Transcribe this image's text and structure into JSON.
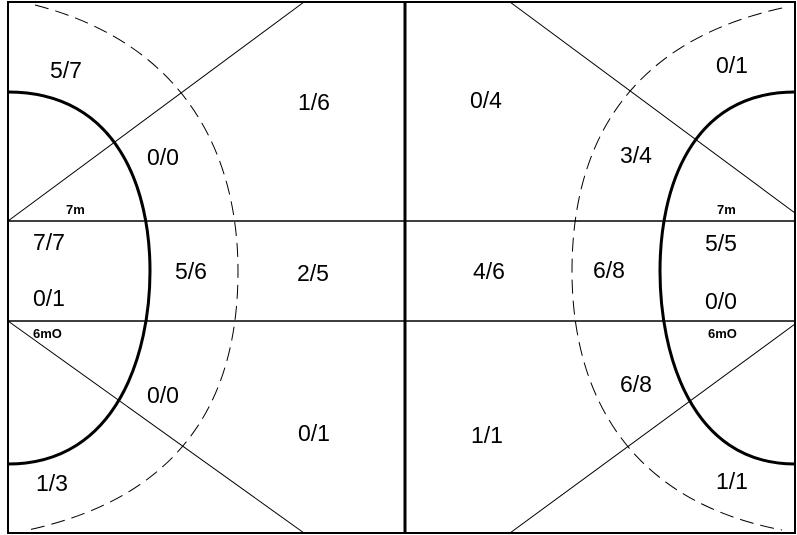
{
  "colors": {
    "background": "#ffffff",
    "lines": "#000000"
  },
  "markers": {
    "left_7m": "7m",
    "left_6mO": "6mO",
    "right_7m": "7m",
    "right_6mO": "6mO"
  },
  "left_half": {
    "top_left": "5/7",
    "top_inner": "0/0",
    "top_middle": "1/6",
    "center_7m": "7/7",
    "center_6m": "0/1",
    "center_inner": "5/6",
    "center_middle": "2/5",
    "bottom_inner": "0/0",
    "bottom_middle": "0/1",
    "bottom_left": "1/3"
  },
  "right_half": {
    "top_middle": "0/4",
    "top_right": "0/1",
    "top_inner": "3/4",
    "center_7m": "5/5",
    "center_6m": "0/0",
    "center_inner": "6/8",
    "center_middle": "4/6",
    "bottom_inner": "6/8",
    "bottom_middle": "1/1",
    "bottom_right": "1/1"
  }
}
